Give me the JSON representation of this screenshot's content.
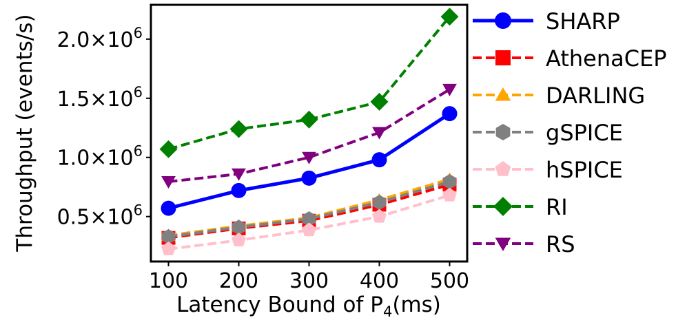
{
  "chart_data": {
    "type": "line",
    "title": "",
    "xlabel_prefix": "Latency Bound of P",
    "xlabel_subscript": "4",
    "xlabel_suffix": "(ms)",
    "ylabel": "Throughput (events/s)",
    "x": [
      100,
      200,
      300,
      400,
      500
    ],
    "xticks": [
      "100",
      "200",
      "300",
      "400",
      "500"
    ],
    "xlim": [
      75,
      525
    ],
    "ylim": [
      120000,
      2290000
    ],
    "yticks": [
      {
        "value": 500000,
        "mantissa": "0.5×10",
        "exp": "6"
      },
      {
        "value": 1000000,
        "mantissa": "1.0×10",
        "exp": "6"
      },
      {
        "value": 1500000,
        "mantissa": "1.5×10",
        "exp": "6"
      },
      {
        "value": 2000000,
        "mantissa": "2.0×10",
        "exp": "6"
      }
    ],
    "grid": false,
    "legend_position": "outside-right",
    "series": [
      {
        "name": "SHARP",
        "color": "#0000ff",
        "marker": "circle",
        "dash": "solid",
        "values": [
          570000,
          720000,
          825000,
          980000,
          1370000
        ]
      },
      {
        "name": "AthenaCEP",
        "color": "#ff0000",
        "marker": "square",
        "dash": "dashed",
        "values": [
          320000,
          400000,
          465000,
          600000,
          770000
        ]
      },
      {
        "name": "DARLING",
        "color": "#ffa500",
        "marker": "triangle-up",
        "dash": "dashed",
        "values": [
          340000,
          420000,
          490000,
          640000,
          815000
        ]
      },
      {
        "name": "gSPICE",
        "color": "#808080",
        "marker": "hexagon",
        "dash": "dashed",
        "values": [
          330000,
          410000,
          480000,
          620000,
          795000
        ]
      },
      {
        "name": "hSPICE",
        "color": "#ffc0cb",
        "marker": "pentagon",
        "dash": "dashed",
        "values": [
          225000,
          300000,
          385000,
          500000,
          680000
        ]
      },
      {
        "name": "RI",
        "color": "#008000",
        "marker": "diamond",
        "dash": "dashed",
        "values": [
          1070000,
          1240000,
          1320000,
          1470000,
          2190000
        ]
      },
      {
        "name": "RS",
        "color": "#800080",
        "marker": "triangle-down",
        "dash": "dashed",
        "values": [
          795000,
          860000,
          1000000,
          1210000,
          1575000
        ]
      }
    ]
  }
}
